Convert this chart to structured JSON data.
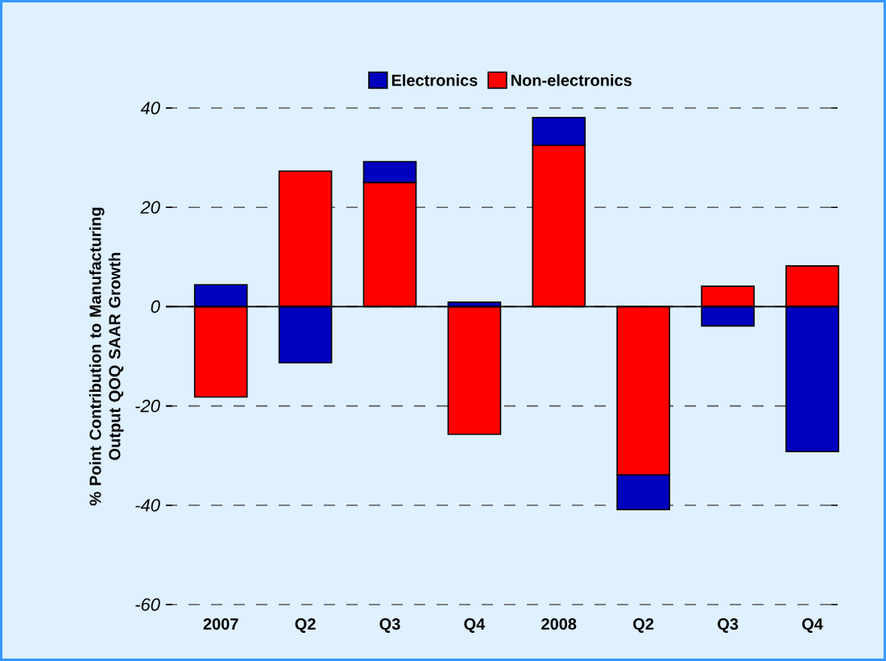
{
  "chart_data": {
    "type": "bar",
    "stacked": true,
    "ylabel": "% Point Contribution to Manufacturing Output QOQ SAAR Growth",
    "categories": [
      "2007",
      "Q2",
      "Q3",
      "Q4",
      "2008",
      "Q2",
      "Q3",
      "Q4"
    ],
    "series": [
      {
        "name": "Non-electronics",
        "color": "#ff0000",
        "values": [
          -18.2,
          27.3,
          25.0,
          -25.7,
          32.5,
          -33.9,
          4.1,
          8.2
        ]
      },
      {
        "name": "Electronics",
        "color": "#0000bf",
        "values": [
          4.4,
          -11.3,
          4.2,
          0.9,
          5.6,
          -7.0,
          -3.9,
          -29.2
        ]
      }
    ],
    "ylim": [
      -60,
      40
    ],
    "yticks": [
      -60,
      -40,
      -20,
      0,
      20,
      40
    ],
    "grid": "y",
    "legend": "top"
  }
}
